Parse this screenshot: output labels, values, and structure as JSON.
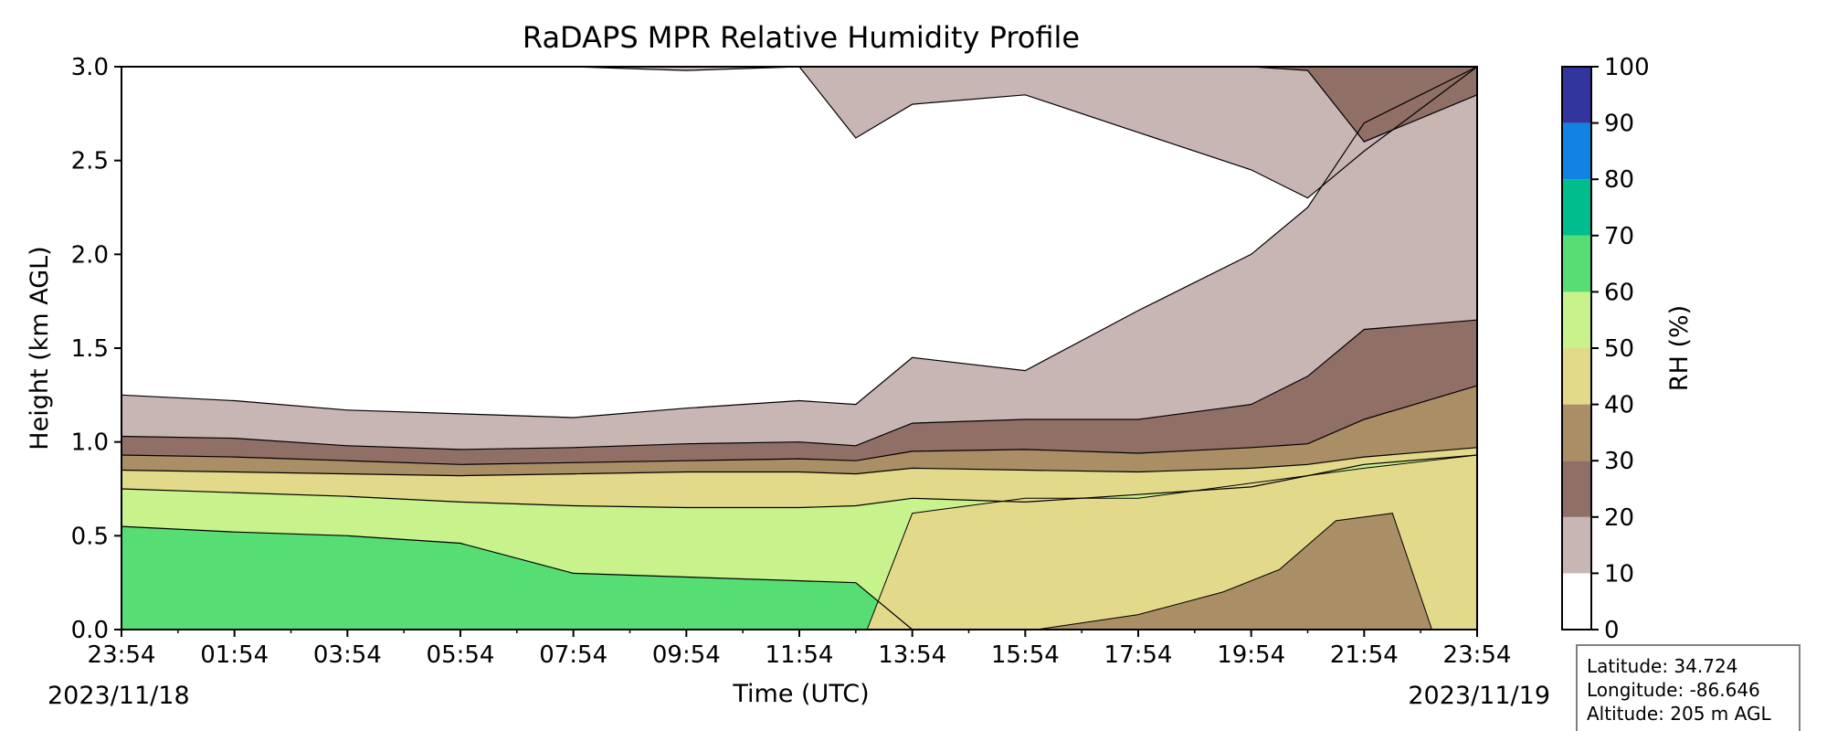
{
  "chart_data": {
    "type": "heatmap",
    "title": "RaDAPS MPR Relative Humidity Profile",
    "xlabel": "Time (UTC)",
    "ylabel": "Height (km AGL)",
    "colorbar_label": "RH (%)",
    "x_tick_labels": [
      "23:54",
      "01:54",
      "03:54",
      "05:54",
      "07:54",
      "09:54",
      "11:54",
      "13:54",
      "15:54",
      "17:54",
      "19:54",
      "21:54",
      "23:54"
    ],
    "start_date": "2023/11/18",
    "end_date": "2023/11/19",
    "x_range": [
      "2023-11-18 23:54",
      "2023-11-19 23:54"
    ],
    "y_ticks": [
      0.0,
      0.5,
      1.0,
      1.5,
      2.0,
      2.5,
      3.0
    ],
    "y_tick_labels": [
      "0.0",
      "0.5",
      "1.0",
      "1.5",
      "2.0",
      "2.5",
      "3.0"
    ],
    "ylim": [
      0.0,
      3.0
    ],
    "colorbar_levels": [
      0,
      10,
      20,
      30,
      40,
      50,
      60,
      70,
      80,
      90,
      100
    ],
    "colorbar_colors": [
      "#ffffff",
      "#c8b6b4",
      "#8f6f66",
      "#a98e66",
      "#e2d98b",
      "#c7f28c",
      "#56dd73",
      "#00bd8e",
      "#1283e2",
      "#33359f"
    ],
    "hours": [
      0,
      2,
      4,
      6,
      8,
      10,
      12,
      13,
      14,
      16,
      18,
      20,
      21,
      22,
      24
    ],
    "contours": {
      "rh_10": [
        1.25,
        1.22,
        1.17,
        1.15,
        1.13,
        1.18,
        1.22,
        1.2,
        1.45,
        1.38,
        1.7,
        2.0,
        2.25,
        2.7,
        3.0
      ],
      "rh_20": [
        1.03,
        1.02,
        0.98,
        0.96,
        0.97,
        0.99,
        1.0,
        0.98,
        1.1,
        1.12,
        1.12,
        1.2,
        1.35,
        1.6,
        1.65
      ],
      "rh_30": [
        0.93,
        0.92,
        0.9,
        0.88,
        0.89,
        0.9,
        0.91,
        0.9,
        0.95,
        0.96,
        0.94,
        0.97,
        0.99,
        1.12,
        1.3
      ],
      "rh_40": [
        0.85,
        0.84,
        0.83,
        0.82,
        0.83,
        0.84,
        0.84,
        0.83,
        0.86,
        0.85,
        0.84,
        0.86,
        0.88,
        0.92,
        0.97
      ],
      "rh_50": [
        0.75,
        0.73,
        0.71,
        0.68,
        0.66,
        0.65,
        0.65,
        0.66,
        0.7,
        0.68,
        0.72,
        0.76,
        0.82,
        0.88,
        0.93
      ],
      "rh_60": [
        0.55,
        0.52,
        0.5,
        0.46,
        0.3,
        0.28,
        0.26,
        0.25,
        0.0,
        0.0,
        0.0,
        0.0,
        0.0,
        0.0,
        0.0
      ]
    },
    "upper_moist_layer": {
      "rh_10_base": [
        3.0,
        3.0,
        3.0,
        3.0,
        3.0,
        2.98,
        3.0,
        2.62,
        2.8,
        2.85,
        2.65,
        2.45,
        2.3,
        2.55,
        3.0
      ],
      "rh_20_base": [
        3.0,
        3.0,
        3.0,
        3.0,
        3.0,
        3.0,
        3.0,
        3.0,
        3.0,
        3.0,
        3.0,
        3.0,
        2.98,
        2.6,
        2.85
      ]
    },
    "surface_layer_30_40_end_hour": 24,
    "info": {
      "latitude": "Latitude: 34.724",
      "longitude": "Longitude: -86.646",
      "altitude": "Altitude: 205 m AGL"
    }
  }
}
